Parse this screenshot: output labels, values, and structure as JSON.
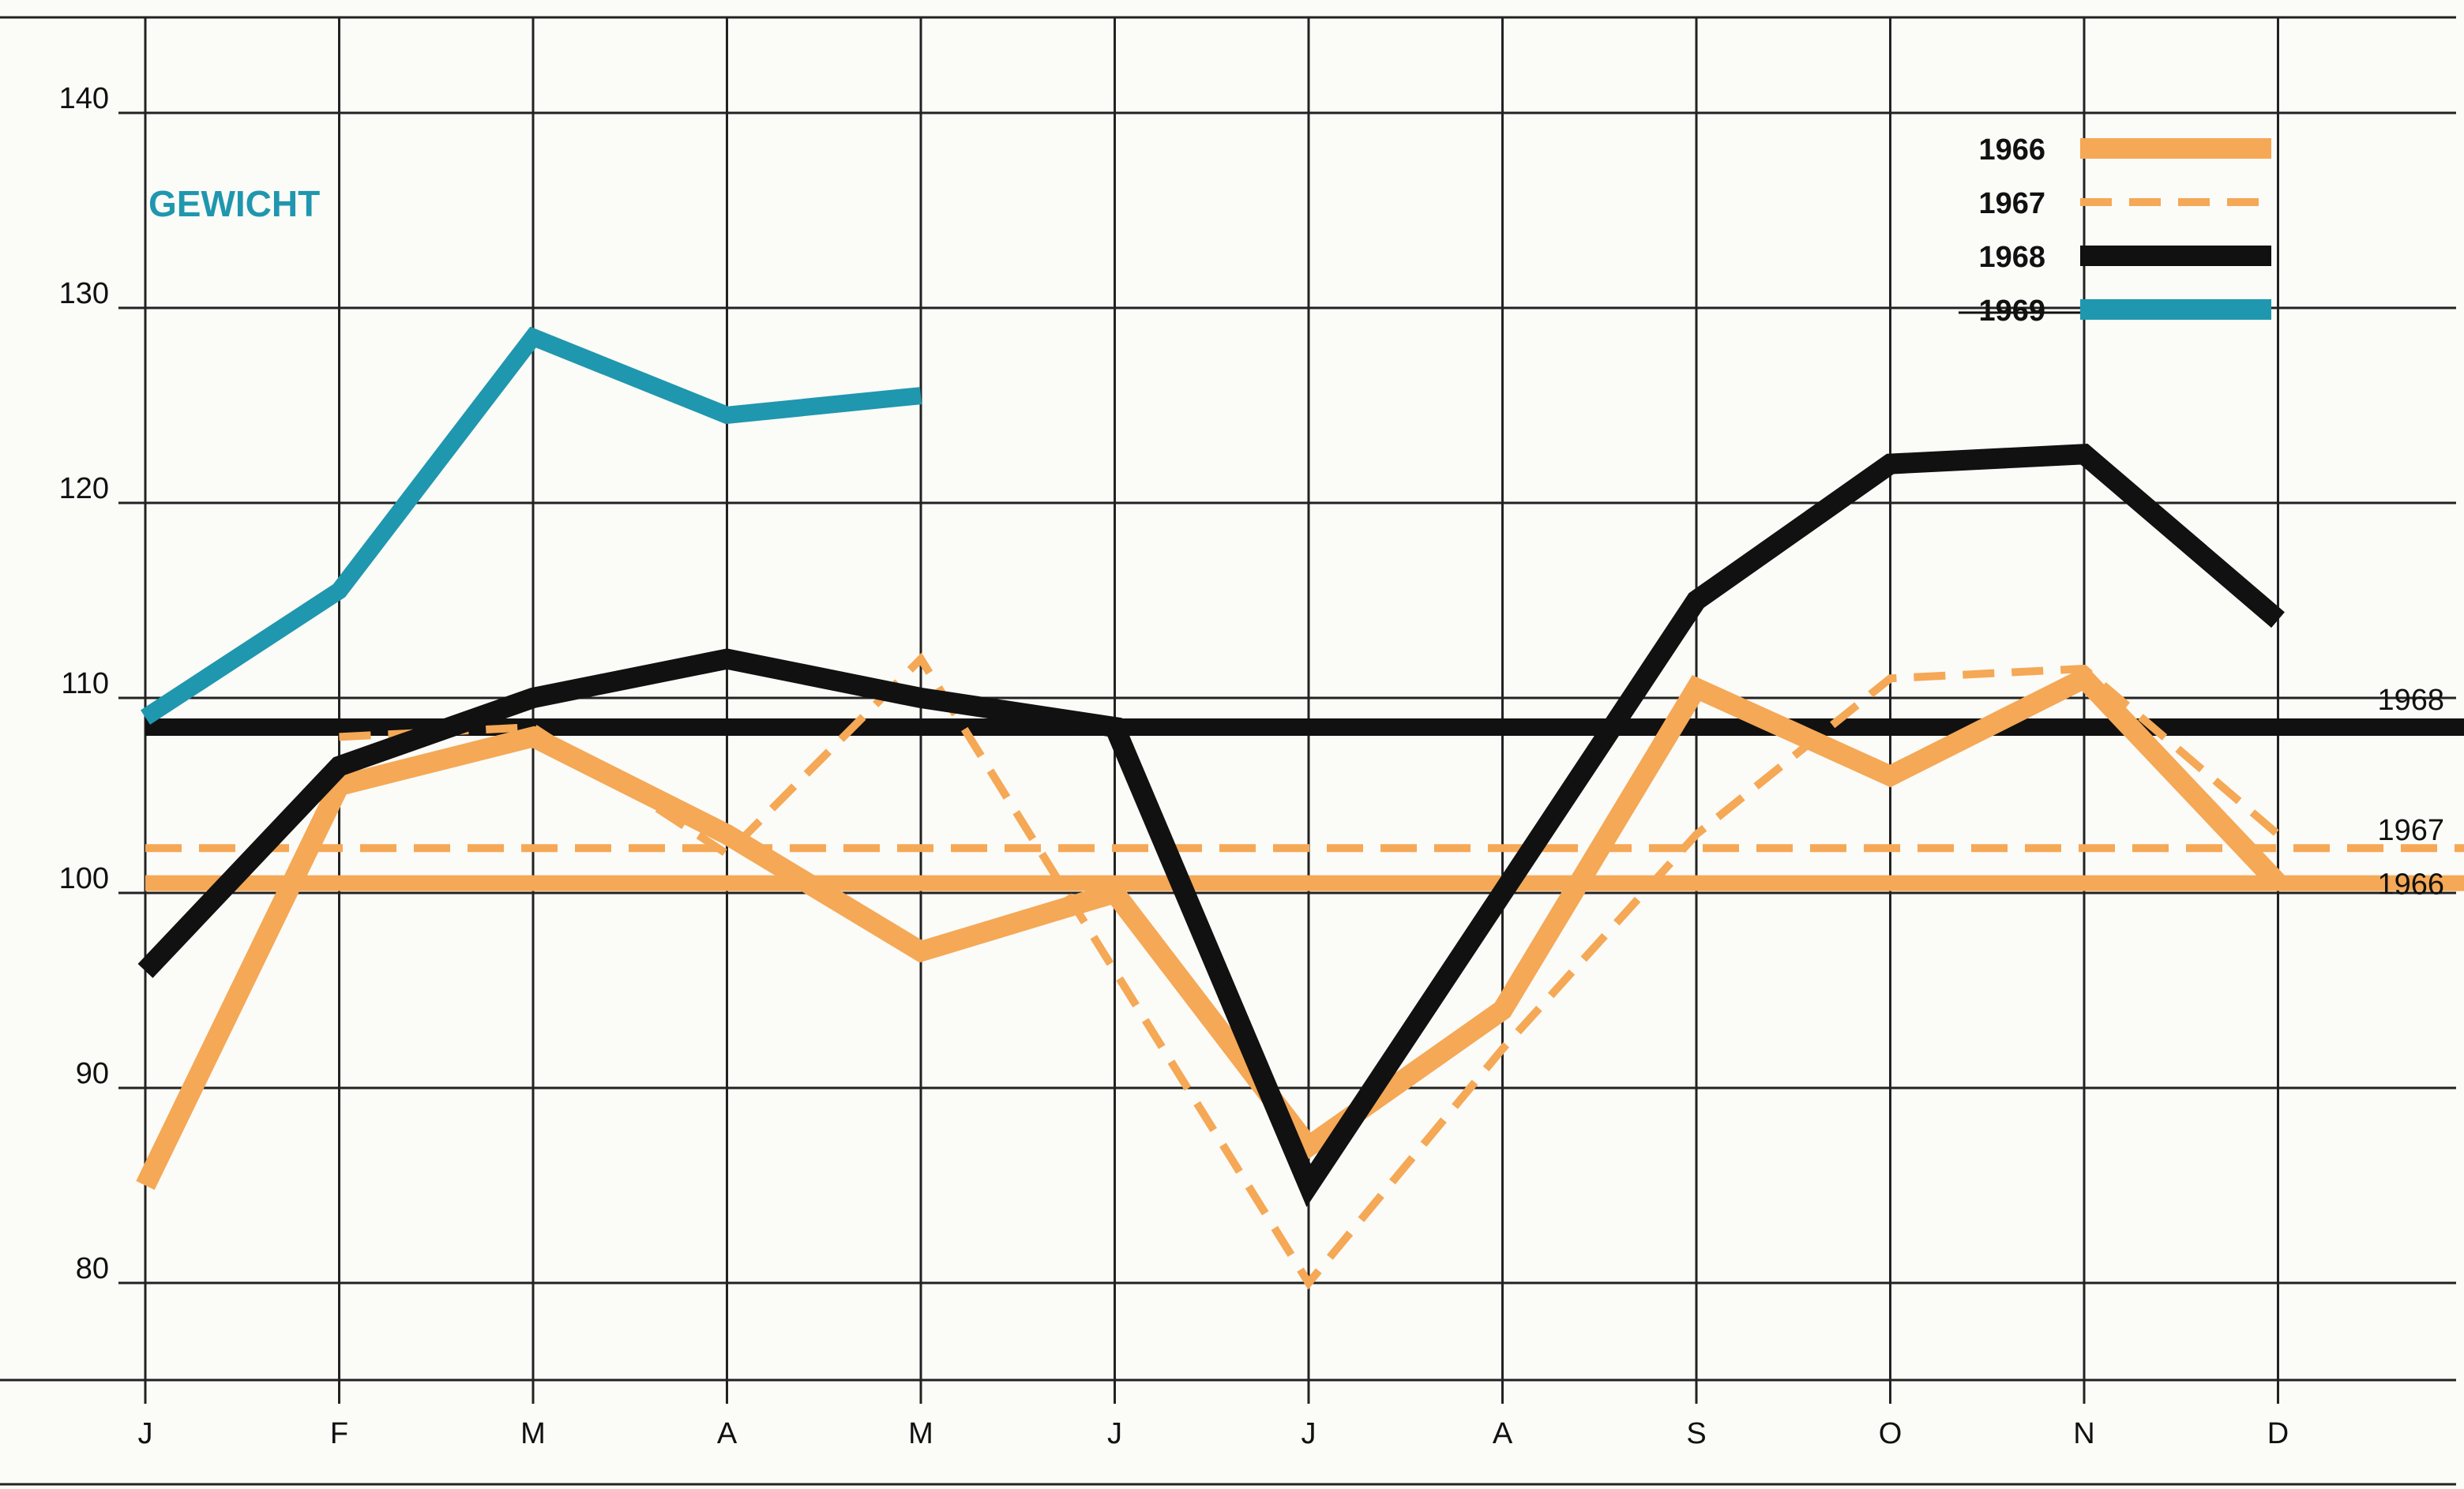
{
  "chart_data": {
    "type": "line",
    "title": "GEWICHT",
    "categories": [
      "J",
      "F",
      "M",
      "A",
      "M",
      "J",
      "J",
      "A",
      "S",
      "O",
      "N",
      "D"
    ],
    "ylim": [
      75,
      144
    ],
    "y_ticks": [
      80,
      90,
      100,
      110,
      120,
      130,
      140
    ],
    "grid": true,
    "legend_position": "top-right",
    "series": [
      {
        "name": "1966",
        "color": "#f5a855",
        "style": "solid",
        "values": [
          85,
          105.5,
          108,
          103,
          97,
          100,
          87,
          94,
          110.5,
          106,
          111,
          100.5
        ]
      },
      {
        "name": "1967",
        "color": "#f5a855",
        "style": "dashed",
        "values": [
          null,
          108,
          108.5,
          102,
          112,
          96,
          80,
          92,
          103,
          111,
          111.5,
          103
        ]
      },
      {
        "name": "1968",
        "color": "#111111",
        "style": "solid",
        "values": [
          96,
          106.5,
          110,
          112,
          110,
          108.5,
          85,
          100,
          115,
          122,
          122.5,
          114
        ]
      },
      {
        "name": "1969",
        "color": "#1f97ae",
        "style": "solid",
        "values": [
          109,
          115.5,
          128.5,
          124.5,
          125.5,
          null,
          null,
          null,
          null,
          null,
          null,
          null
        ]
      }
    ],
    "averages": [
      {
        "label": "1968",
        "value": 108.5,
        "color": "#111111",
        "style": "solid"
      },
      {
        "label": "1967",
        "value": 102.3,
        "color": "#f5a855",
        "style": "dashed"
      },
      {
        "label": "1966",
        "value": 100.5,
        "color": "#f5a855",
        "style": "solid"
      }
    ]
  }
}
